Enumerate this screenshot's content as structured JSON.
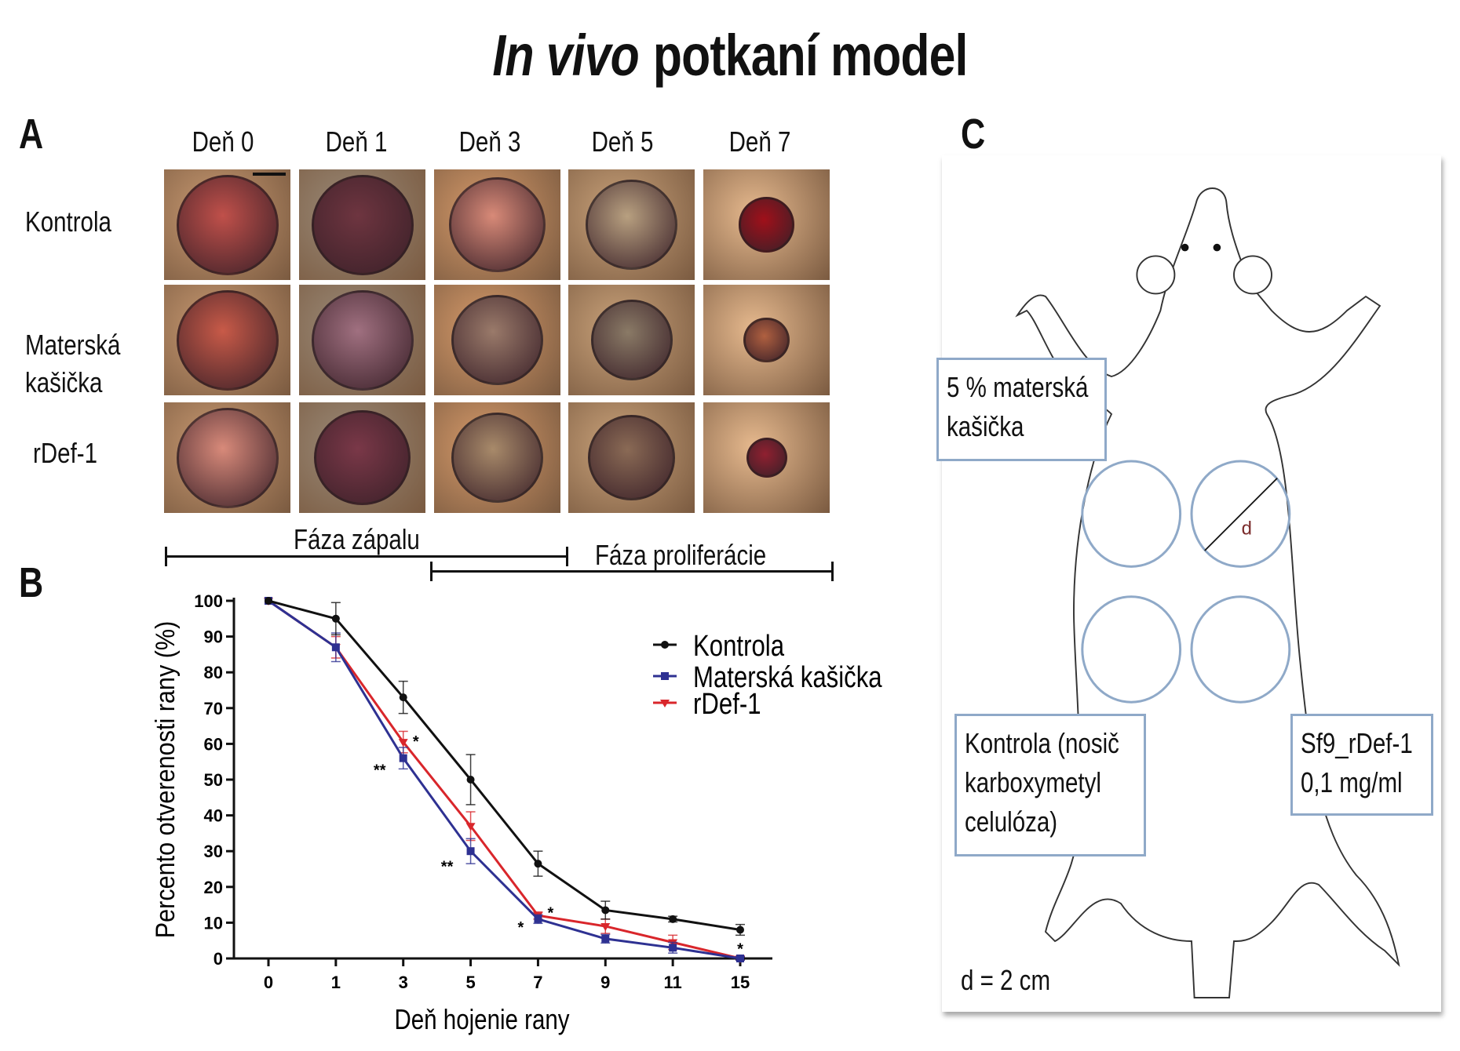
{
  "title": {
    "italic": "In vivo",
    "rest": "potkaní model"
  },
  "panel_a": {
    "letter": "A",
    "days": [
      "Deň 0",
      "Deň 1",
      "Deň 3",
      "Deň 5",
      "Deň 7"
    ],
    "rows": [
      "Kontrola",
      "Materská",
      "kašička",
      "rDef-1"
    ]
  },
  "phases": {
    "inflammation": "Fáza zápalu",
    "proliferation": "Fáza proliferácie"
  },
  "panel_b": {
    "letter": "B"
  },
  "chart_data": {
    "type": "line",
    "xlabel": "Deň hojenie rany",
    "ylabel": "Percento otverenosti rany (%)",
    "categories": [
      "0",
      "1",
      "3",
      "5",
      "7",
      "9",
      "11",
      "15"
    ],
    "ylim": [
      0,
      100
    ],
    "yticks": [
      "0",
      "10",
      "20",
      "30",
      "40",
      "50",
      "60",
      "70",
      "80",
      "90",
      "100"
    ],
    "legend_position": "top-right",
    "series": [
      {
        "name": "Kontrola",
        "color": "#111111",
        "marker": "circle",
        "values": [
          100,
          95,
          73,
          50,
          26.5,
          13.5,
          11,
          8
        ],
        "errors": [
          0,
          4.5,
          4.5,
          7,
          3.5,
          2.5,
          0.8,
          1.5
        ]
      },
      {
        "name": "Materská kašička",
        "color": "#2e3192",
        "marker": "square",
        "values": [
          100,
          87,
          56,
          30,
          11,
          5.5,
          3,
          0
        ],
        "errors": [
          0,
          4,
          3,
          3.5,
          1.2,
          1.2,
          1.5,
          0.5
        ]
      },
      {
        "name": "rDef-1",
        "color": "#d9262b",
        "marker": "triangle",
        "values": [
          100,
          87,
          60.5,
          37,
          12,
          9,
          4.5,
          0
        ],
        "errors": [
          0,
          3,
          3,
          4,
          1,
          2,
          2,
          0.5
        ]
      }
    ],
    "annotations": [
      {
        "text": "**",
        "x": "3",
        "y": 53
      },
      {
        "text": "*",
        "x": "3",
        "y": 61
      },
      {
        "text": "**",
        "x": "5",
        "y": 26
      },
      {
        "text": "*",
        "x": "7",
        "y": 9
      },
      {
        "text": "*",
        "x": "7",
        "y": 13
      },
      {
        "text": "*",
        "x": "15",
        "y": 3
      }
    ]
  },
  "panel_c": {
    "letter": "C",
    "box_top": [
      "5 % materská",
      "kašička"
    ],
    "box_left": [
      "Kontrola (nosič",
      "karboxymetyl",
      "celulóza)"
    ],
    "box_right": [
      "Sf9_rDef-1",
      "0,1 mg/ml"
    ],
    "diameter_mark": "d",
    "scale": "d = 2 cm"
  }
}
